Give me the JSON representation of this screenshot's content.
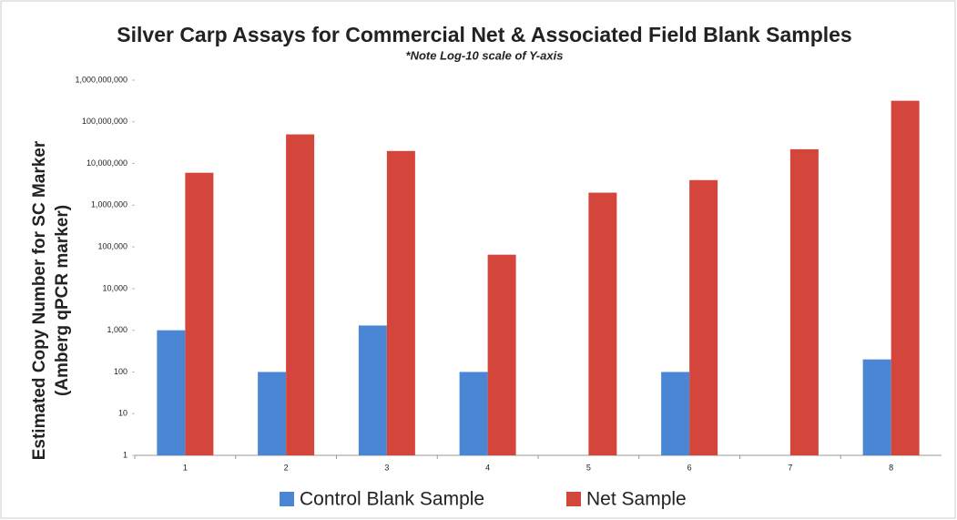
{
  "chart_data": {
    "type": "bar",
    "title": "Silver Carp Assays for Commercial Net & Associated Field Blank Samples",
    "subtitle": "*Note Log-10 scale of Y-axis",
    "ylabel": [
      "Estimated Copy Number  for SC Marker",
      "(Amberg qPCR marker)"
    ],
    "categories": [
      "1",
      "2",
      "3",
      "4",
      "5",
      "6",
      "7",
      "8"
    ],
    "series": [
      {
        "name": "Control Blank Sample",
        "color": "#4a86d4",
        "values": [
          1000,
          100,
          1300,
          100,
          null,
          100,
          null,
          200
        ]
      },
      {
        "name": "Net Sample",
        "color": "#d4463c",
        "values": [
          6000000,
          50000000,
          20000000,
          65000,
          2000000,
          4000000,
          22000000,
          320000000
        ]
      }
    ],
    "log_scale": true,
    "ylim": [
      1,
      1000000000
    ],
    "yticks": [
      1,
      10,
      100,
      {
        "value": 1000,
        "label": "1,000"
      },
      {
        "value": 10000,
        "label": "10,000"
      },
      {
        "value": 100000,
        "label": "100,000"
      },
      {
        "value": 1000000,
        "label": "1,000,000"
      },
      {
        "value": 10000000,
        "label": "10,000,000"
      },
      {
        "value": 100000000,
        "label": "100,000,000"
      },
      {
        "value": 1000000000,
        "label": "1,000,000,000"
      }
    ],
    "grid": false,
    "legend": "bottom"
  }
}
